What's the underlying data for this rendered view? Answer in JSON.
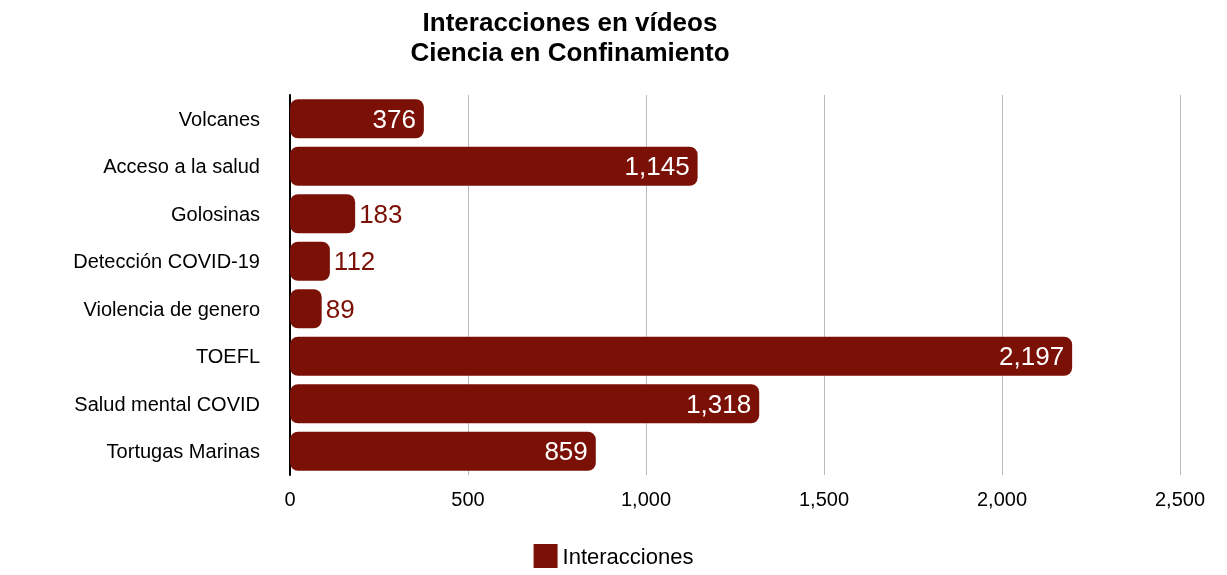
{
  "chart_data": {
    "type": "bar",
    "orientation": "horizontal",
    "title": "Interacciones en vídeos",
    "subtitle": "Ciencia en Confinamiento",
    "categories": [
      "Volcanes",
      "Acceso a la salud",
      "Golosinas",
      "Detección COVID-19",
      "Violencia de genero",
      "TOEFL",
      "Salud mental COVID",
      "Tortugas Marinas"
    ],
    "series": [
      {
        "name": "Interacciones",
        "color": "#7b1106",
        "values": [
          376,
          1145,
          183,
          112,
          89,
          2197,
          1318,
          859
        ]
      }
    ],
    "value_labels": [
      "376",
      "1,145",
      "183",
      "112",
      "89",
      "2,197",
      "1,318",
      "859"
    ],
    "xlim": [
      0,
      2500
    ],
    "xticks": [
      0,
      500,
      {
        "value": 1000,
        "label": "1,000"
      },
      {
        "value": 1500,
        "label": "1,500"
      },
      {
        "value": 2000,
        "label": "2,000"
      },
      {
        "value": 2500,
        "label": "2,500"
      }
    ],
    "grid": "x",
    "legend": "bottom"
  }
}
